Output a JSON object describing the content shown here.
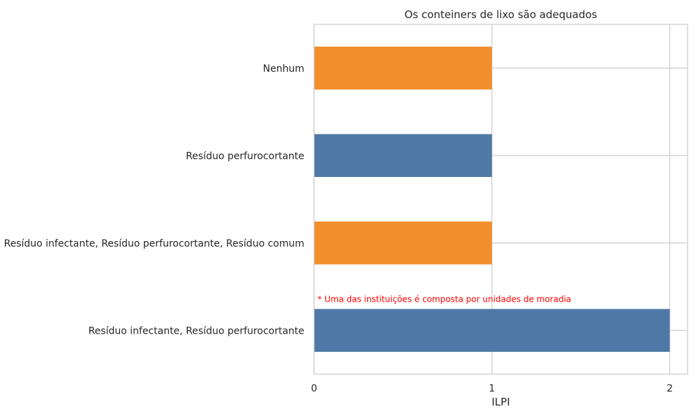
{
  "chart_data": {
    "type": "bar",
    "orientation": "horizontal",
    "title": "Os conteiners de lixo são adequados",
    "xlabel": "ILPI",
    "ylabel": "",
    "categories": [
      "Nenhum",
      "Resíduo perfurocortante",
      "Resíduo infectante, Resíduo perfurocortante, Resíduo comum",
      "Resíduo infectante, Resíduo perfurocortante"
    ],
    "values": [
      1,
      1,
      1,
      2
    ],
    "bar_colors": [
      "#f28e2b",
      "#4e79a7",
      "#f28e2b",
      "#4e79a7"
    ],
    "xlim": [
      0,
      2.1
    ],
    "xticks": [
      0,
      1,
      2
    ],
    "xtick_labels": [
      "0",
      "1",
      "2"
    ],
    "grid": true,
    "annotation": {
      "text": "* Uma das instituições é composta por unidades de moradia",
      "color": "#ff0000"
    }
  }
}
